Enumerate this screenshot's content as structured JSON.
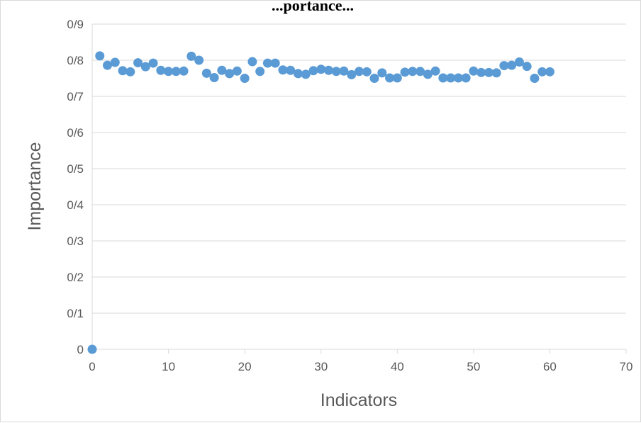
{
  "chart_data": {
    "type": "scatter",
    "title": "...portance...",
    "xlabel": "Indicators",
    "ylabel": "Importance",
    "xlim": [
      0,
      70
    ],
    "ylim": [
      0,
      0.9
    ],
    "x_ticks": [
      0,
      10,
      20,
      30,
      40,
      50,
      60,
      70
    ],
    "x_tick_labels": [
      "0",
      "10",
      "20",
      "30",
      "40",
      "50",
      "60",
      "70"
    ],
    "y_ticks": [
      0,
      0.1,
      0.2,
      0.3,
      0.4,
      0.5,
      0.6,
      0.7,
      0.8,
      0.9
    ],
    "y_tick_labels": [
      "0",
      "0/1",
      "0/2",
      "0/3",
      "0/4",
      "0/5",
      "0/6",
      "0/7",
      "0/8",
      "0/9"
    ],
    "grid": "horizontal",
    "legend": "none",
    "marker_color": "#5b9bd5",
    "gridline_color": "#d9d9d9",
    "series": [
      {
        "x": [
          0,
          1,
          2,
          3,
          4,
          5,
          6,
          7,
          8,
          9,
          10,
          11,
          12,
          13,
          14,
          15,
          16,
          17,
          18,
          19,
          20,
          21,
          22,
          23,
          24,
          25,
          26,
          27,
          28,
          29,
          30,
          31,
          32,
          33,
          34,
          35,
          36,
          37,
          38,
          39,
          40,
          41,
          42,
          43,
          44,
          45,
          46,
          47,
          48,
          49,
          50,
          51,
          52,
          53,
          54,
          55,
          56,
          57,
          58,
          59,
          60
        ],
        "y": [
          0,
          0.812,
          0.786,
          0.794,
          0.771,
          0.768,
          0.793,
          0.782,
          0.792,
          0.772,
          0.769,
          0.769,
          0.77,
          0.811,
          0.8,
          0.764,
          0.752,
          0.772,
          0.763,
          0.77,
          0.75,
          0.796,
          0.769,
          0.792,
          0.792,
          0.773,
          0.772,
          0.763,
          0.761,
          0.771,
          0.775,
          0.772,
          0.769,
          0.77,
          0.76,
          0.769,
          0.768,
          0.75,
          0.765,
          0.751,
          0.751,
          0.767,
          0.769,
          0.769,
          0.761,
          0.77,
          0.751,
          0.751,
          0.751,
          0.751,
          0.77,
          0.766,
          0.766,
          0.765,
          0.785,
          0.786,
          0.795,
          0.783,
          0.75,
          0.768,
          0.768
        ]
      }
    ]
  }
}
